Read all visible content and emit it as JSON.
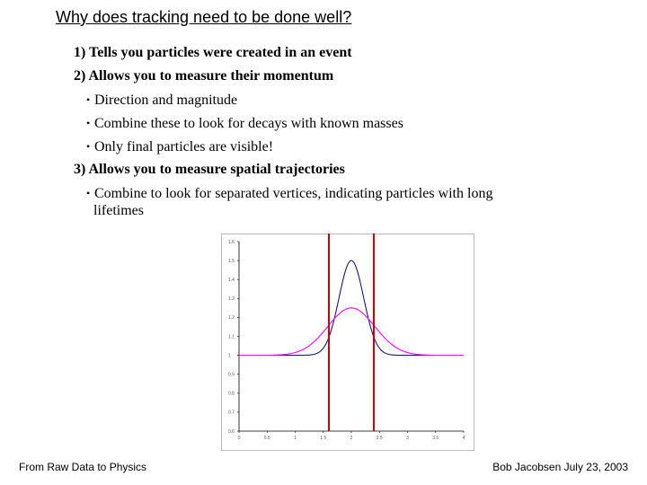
{
  "slide": {
    "title": "Why does tracking need to be done well?",
    "points": {
      "p1": "1) Tells you particles were created in an event",
      "p2": "2) Allows you to measure their momentum",
      "b1": "Direction and magnitude",
      "b2": "Combine these to look for decays with known masses",
      "b3": "Only final particles are visible!",
      "p3": "3) Allows you to measure spatial trajectories",
      "b4a": "Combine to look for separated vertices, indicating particles with long",
      "b4b": "lifetimes"
    },
    "bullet_char": "•"
  },
  "footer": {
    "left": "From Raw Data to Physics",
    "right": "Bob Jacobsen July 23, 2003"
  },
  "chart_data": {
    "type": "line",
    "x_ticks": [
      "0",
      "0.5",
      "1",
      "1.5",
      "2",
      "2.5",
      "3",
      "3.5",
      "4"
    ],
    "y_ticks": [
      "0.6",
      "0.7",
      "0.8",
      "0.9",
      "1",
      "1.1",
      "1.2",
      "1.3",
      "1.4",
      "1.5",
      "1.6"
    ],
    "xlim": [
      0,
      4
    ],
    "ylim": [
      0.6,
      1.6
    ],
    "grid": false,
    "series": [
      {
        "color": "#1a1a6e",
        "shape": "narrow-peak",
        "baseline": 1.0,
        "peak_x": 2.0,
        "peak_y": 1.5,
        "sigma": 0.22,
        "range": [
          0.5,
          3.5
        ]
      },
      {
        "color": "#ff00ff",
        "shape": "wide-peak",
        "baseline": 1.0,
        "peak_x": 2.0,
        "peak_y": 1.25,
        "sigma": 0.42,
        "range": [
          0,
          4
        ]
      }
    ],
    "vertical_lines": [
      {
        "x": 1.6,
        "color": "#cc0000"
      },
      {
        "x": 2.4,
        "color": "#cc0000"
      }
    ],
    "colors": {
      "frame": "#bbbbbb",
      "axis": "#000000"
    }
  }
}
